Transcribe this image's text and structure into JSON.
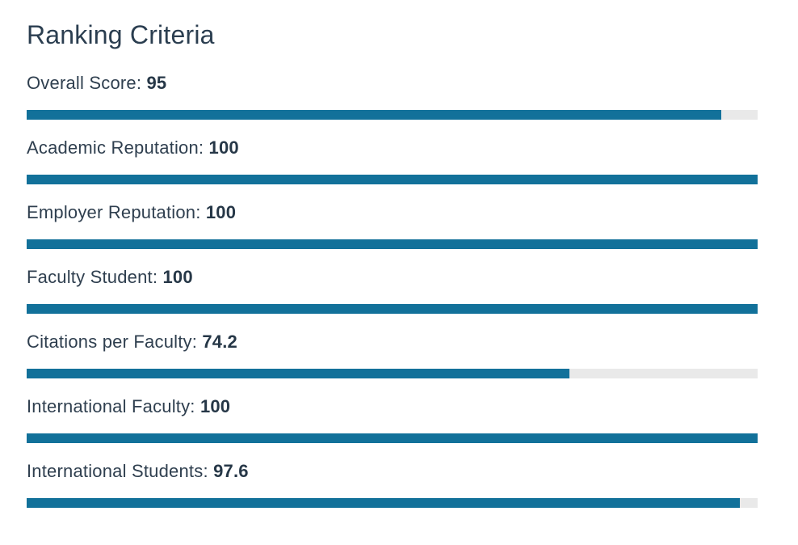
{
  "section": {
    "title": "Ranking Criteria"
  },
  "colors": {
    "bar_fill": "#12719a",
    "bar_track": "#e9e9e9",
    "title_text": "#2b3e50"
  },
  "criteria": [
    {
      "label": "Overall Score:",
      "value": "95",
      "score": 95,
      "max": 100
    },
    {
      "label": "Academic Reputation:",
      "value": "100",
      "score": 100,
      "max": 100
    },
    {
      "label": "Employer Reputation:",
      "value": "100",
      "score": 100,
      "max": 100
    },
    {
      "label": "Faculty Student:",
      "value": "100",
      "score": 100,
      "max": 100
    },
    {
      "label": "Citations per Faculty:",
      "value": "74.2",
      "score": 74.2,
      "max": 100
    },
    {
      "label": "International Faculty:",
      "value": "100",
      "score": 100,
      "max": 100
    },
    {
      "label": "International Students:",
      "value": "97.6",
      "score": 97.6,
      "max": 100
    }
  ]
}
